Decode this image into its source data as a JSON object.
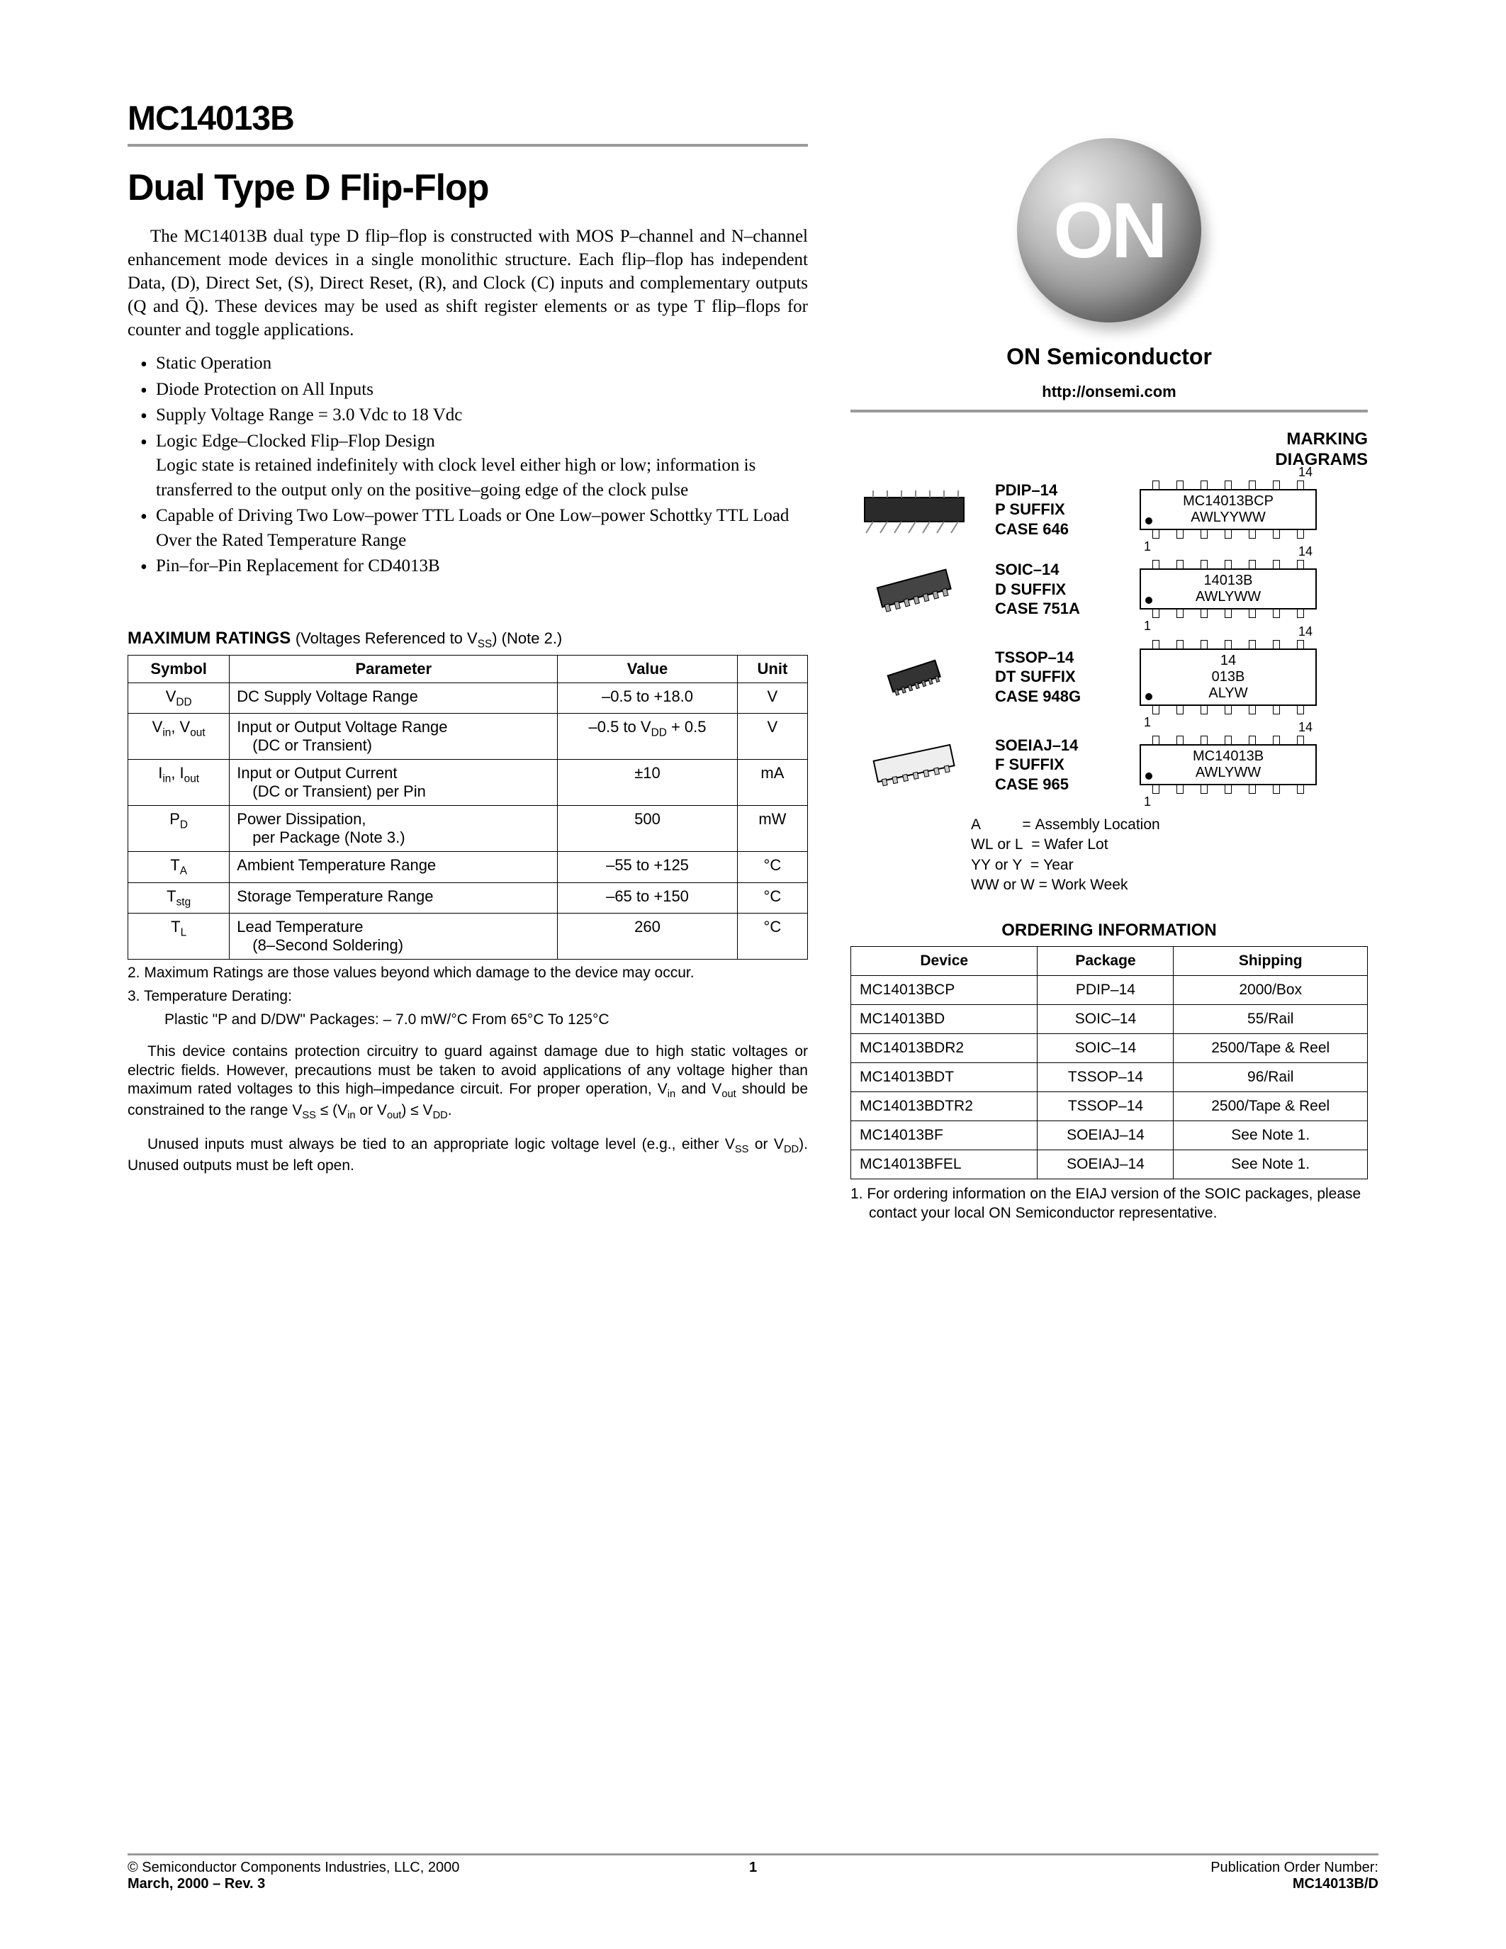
{
  "part_number": "MC14013B",
  "title": "Dual Type D Flip-Flop",
  "intro": "The MC14013B dual type D flip–flop is constructed with MOS P–channel and N–channel enhancement mode devices in a single monolithic structure. Each flip–flop has independent Data, (D), Direct Set, (S), Direct Reset, (R), and Clock (C) inputs and complementary outputs (Q and Q̄). These devices may be used as shift register elements or as type T flip–flops for counter and toggle applications.",
  "features": [
    "Static Operation",
    "Diode Protection on All Inputs",
    "Supply Voltage Range = 3.0 Vdc to 18 Vdc",
    "Logic Edge–Clocked Flip–Flop Design",
    "Capable of Driving Two Low–power TTL Loads or One Low–power Schottky TTL Load Over the Rated Temperature Range",
    "Pin–for–Pin Replacement for CD4013B"
  ],
  "feature_sub": "Logic state is retained indefinitely with clock level either high or low; information is transferred to the output only on the positive–going edge of the clock pulse",
  "ratings_heading": "MAXIMUM RATINGS",
  "ratings_paren": "(Voltages Referenced to VSS) (Note 2.)",
  "ratings_cols": [
    "Symbol",
    "Parameter",
    "Value",
    "Unit"
  ],
  "ratings_rows": [
    {
      "sym": "V<sub>DD</sub>",
      "param": "DC Supply Voltage Range",
      "val": "–0.5 to +18.0",
      "unit": "V"
    },
    {
      "sym": "V<sub>in</sub>, V<sub>out</sub>",
      "param": "Input or Output Voltage Range<br><span class='sub-indent'>(DC or Transient)</span>",
      "val": "–0.5 to V<sub>DD</sub> + 0.5",
      "unit": "V"
    },
    {
      "sym": "I<sub>in</sub>, I<sub>out</sub>",
      "param": "Input or Output Current<br><span class='sub-indent'>(DC or Transient) per Pin</span>",
      "val": "±10",
      "unit": "mA"
    },
    {
      "sym": "P<sub>D</sub>",
      "param": "Power Dissipation,<br><span class='sub-indent'>per Package (Note 3.)</span>",
      "val": "500",
      "unit": "mW"
    },
    {
      "sym": "T<sub>A</sub>",
      "param": "Ambient Temperature Range",
      "val": "–55 to +125",
      "unit": "°C"
    },
    {
      "sym": "T<sub>stg</sub>",
      "param": "Storage Temperature Range",
      "val": "–65 to +150",
      "unit": "°C"
    },
    {
      "sym": "T<sub>L</sub>",
      "param": "Lead Temperature<br><span class='sub-indent'>(8–Second Soldering)</span>",
      "val": "260",
      "unit": "°C"
    }
  ],
  "note2": "2.  Maximum Ratings are those values beyond which damage to the device may occur.",
  "note3a": "3.  Temperature Derating:",
  "note3b": "Plastic \"P and D/DW\" Packages: – 7.0 mW/°C From 65°C To 125°C",
  "protect1": "This device contains protection circuitry to guard against damage due to high static voltages or electric fields. However, precautions must be taken to avoid applications of any voltage higher than maximum rated voltages to this high–impedance circuit. For proper operation, Vin and Vout should be constrained to the range VSS ≤ (Vin or Vout) ≤ VDD.",
  "protect2": "Unused inputs must always be tied to an appropriate logic voltage level (e.g., either VSS or VDD). Unused outputs must be left open.",
  "logo_text": "ON",
  "company": "ON Semiconductor",
  "url": "http://onsemi.com",
  "marking_title": "MARKING\nDIAGRAMS",
  "packages": [
    {
      "name": "PDIP–14",
      "suffix": "P SUFFIX",
      "case": "CASE 646",
      "mark1": "MC14013BCP",
      "mark2": "AWLYYWW"
    },
    {
      "name": "SOIC–14",
      "suffix": "D SUFFIX",
      "case": "CASE 751A",
      "mark1": "14013B",
      "mark2": "AWLYWW"
    },
    {
      "name": "TSSOP–14",
      "suffix": "DT SUFFIX",
      "case": "CASE 948G",
      "mark1": "14\n013B",
      "mark2": "ALYW"
    },
    {
      "name": "SOEIAJ–14",
      "suffix": "F SUFFIX",
      "case": "CASE 965",
      "mark1": "MC14013B",
      "mark2": "AWLYWW"
    }
  ],
  "legend": [
    "A          = Assembly Location",
    "WL or L  = Wafer Lot",
    "YY or Y  = Year",
    "WW or W = Work Week"
  ],
  "order_title": "ORDERING INFORMATION",
  "order_cols": [
    "Device",
    "Package",
    "Shipping"
  ],
  "order_rows": [
    [
      "MC14013BCP",
      "PDIP–14",
      "2000/Box"
    ],
    [
      "MC14013BD",
      "SOIC–14",
      "55/Rail"
    ],
    [
      "MC14013BDR2",
      "SOIC–14",
      "2500/Tape & Reel"
    ],
    [
      "MC14013BDT",
      "TSSOP–14",
      "96/Rail"
    ],
    [
      "MC14013BDTR2",
      "TSSOP–14",
      "2500/Tape & Reel"
    ],
    [
      "MC14013BF",
      "SOEIAJ–14",
      "See Note 1."
    ],
    [
      "MC14013BFEL",
      "SOEIAJ–14",
      "See Note 1."
    ]
  ],
  "order_note": "1.  For ordering information on the EIAJ version of the SOIC packages, please contact your local ON Semiconductor representative.",
  "footer_left1": "©  Semiconductor Components Industries, LLC, 2000",
  "footer_left2": "March, 2000 – Rev. 3",
  "footer_center": "1",
  "footer_right1": "Publication Order Number:",
  "footer_right2": "MC14013B/D"
}
